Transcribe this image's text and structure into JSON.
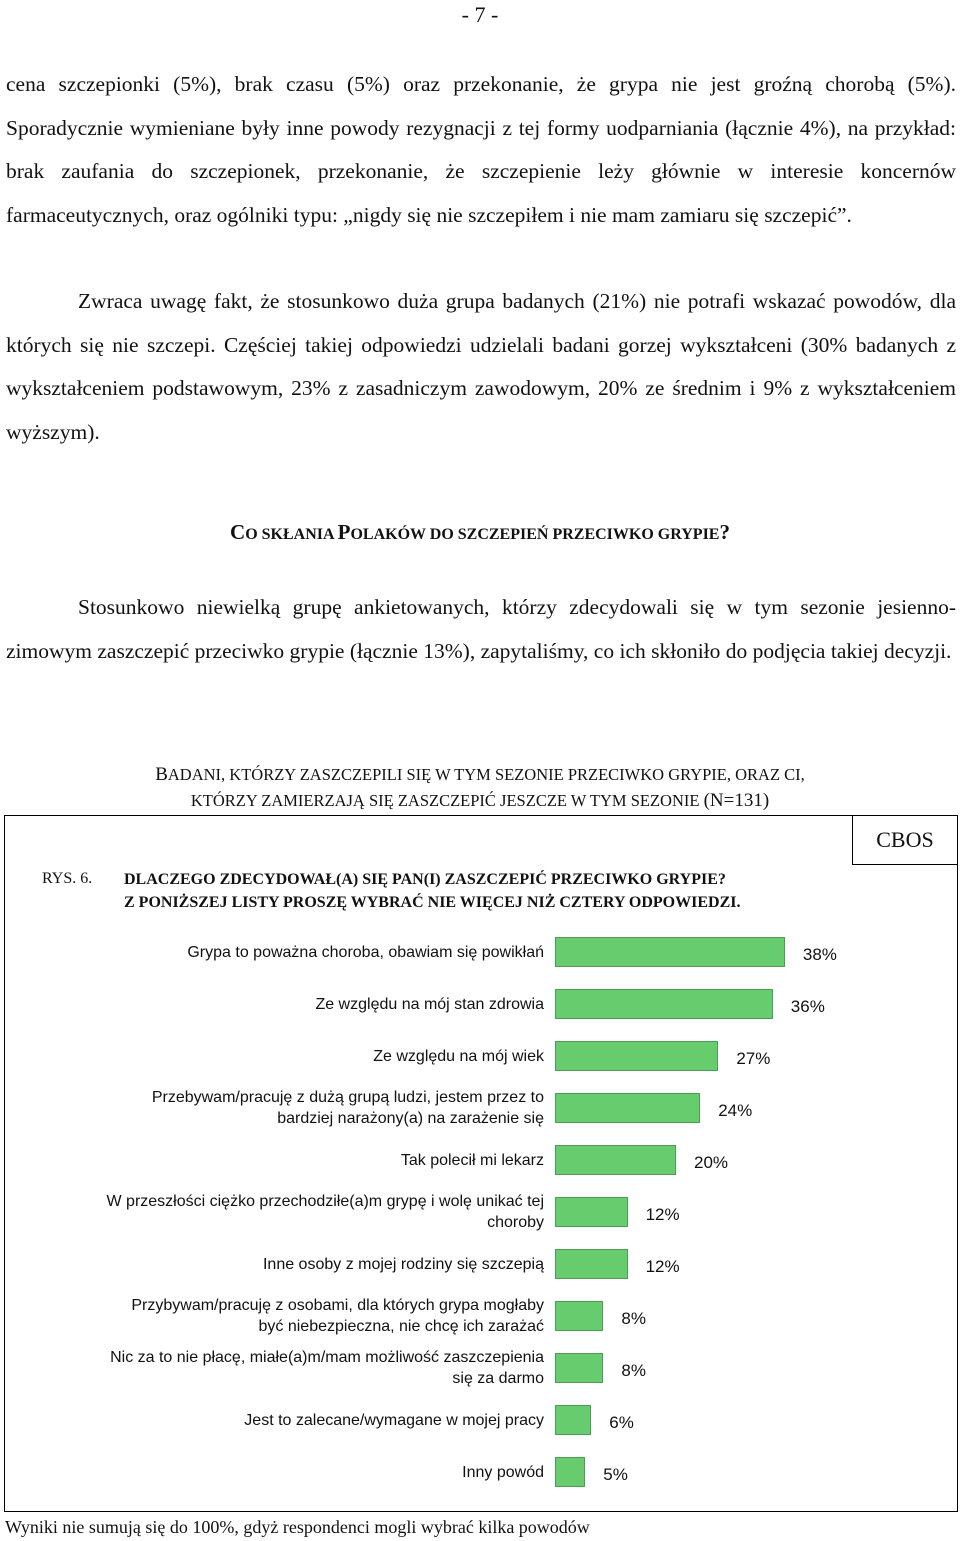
{
  "page_number": "- 7 -",
  "paragraphs": {
    "p1": "cena szczepionki (5%),  brak czasu (5%) oraz przekonanie, że grypa nie jest groźną chorobą (5%). Sporadycznie wymieniane były inne powody rezygnacji z tej formy uodparniania (łącznie 4%), na przykład: brak zaufania do szczepionek, przekonanie, że szczepienie leży głównie w interesie koncernów farmaceutycznych, oraz ogólniki typu: „nigdy się nie szczepiłem i nie mam zamiaru się szczepić”.",
    "p2": "Zwraca uwagę fakt, że stosunkowo duża grupa badanych (21%) nie potrafi wskazać powodów, dla których się nie szczepi. Częściej takiej odpowiedzi udzielali badani gorzej wykształceni (30% badanych z wykształceniem podstawowym, 23% z zasadniczym zawodowym, 20% ze średnim i 9% z wykształceniem wyższym).",
    "p3": "Stosunkowo niewielką grupę ankietowanych, którzy zdecydowali się w tym sezonie jesienno-zimowym zaszczepić przeciwko grypie (łącznie 13%), zapytaliśmy, co ich skłoniło do podjęcia takiej decyzji."
  },
  "section_heading": {
    "c1": "C",
    "r1": "O SKŁANIA ",
    "c2": "P",
    "r2": "OLAKÓW DO SZCZEPIEŃ PRZECIWKO GRYPIE",
    "end": "?"
  },
  "figure": {
    "title_line1": {
      "c1": "B",
      "r1": "ADANI, KTÓRZY ZASZCZEPILI SIĘ W TYM SEZONIE PRZECIWKO GRYPIE, ORAZ CI,"
    },
    "title_line2": {
      "r1": "KTÓRZY ZAMIERZAJĄ SIĘ ZASZCZEPIĆ JESZCZE  W TYM SEZONIE ",
      "n": "(N=131)"
    },
    "cbos": "CBOS",
    "rys": "RYS. 6.",
    "question_line1": "DLACZEGO ZDECYDOWAŁ(A) SIĘ PAN(I) ZASZCZEPIĆ PRZECIWKO GRYPIE?",
    "question_line2": "Z PONIŻSZEJ LISTY PROSZĘ WYBRAĆ NIE WIĘCEJ NIŻ CZTERY ODPOWIEDZI.",
    "footnote": "Wyniki nie sumują się do 100%, gdyż respondenci mogli wybrać kilka powodów"
  },
  "chart_data": {
    "type": "bar",
    "orientation": "horizontal",
    "bar_color": "#66cc6e",
    "categories": [
      "Grypa to poważna choroba, obawiam się powikłań",
      "Ze względu na mój stan zdrowia",
      "Ze względu na mój wiek",
      "Przebywam/pracuję z dużą grupą ludzi, jestem przez to bardziej narażony(a) na zarażenie się",
      "Tak polecił mi lekarz",
      "W przeszłości ciężko przechodziłe(a)m grypę i wolę unikać tej choroby",
      "Inne osoby z mojej rodziny się szczepią",
      "Przybywam/pracuję z osobami, dla których grypa mogłaby być niebezpieczna, nie chcę ich zarażać",
      "Nic za to nie płacę, miałe(a)m/mam możliwość zaszczepienia się za darmo",
      "Jest to zalecane/wymagane w mojej pracy",
      "Inny powód"
    ],
    "values": [
      38,
      36,
      27,
      24,
      20,
      12,
      12,
      8,
      8,
      6,
      5
    ],
    "value_labels": [
      "38%",
      "36%",
      "27%",
      "24%",
      "20%",
      "12%",
      "12%",
      "8%",
      "8%",
      "6%",
      "5%"
    ],
    "unit": "%"
  }
}
